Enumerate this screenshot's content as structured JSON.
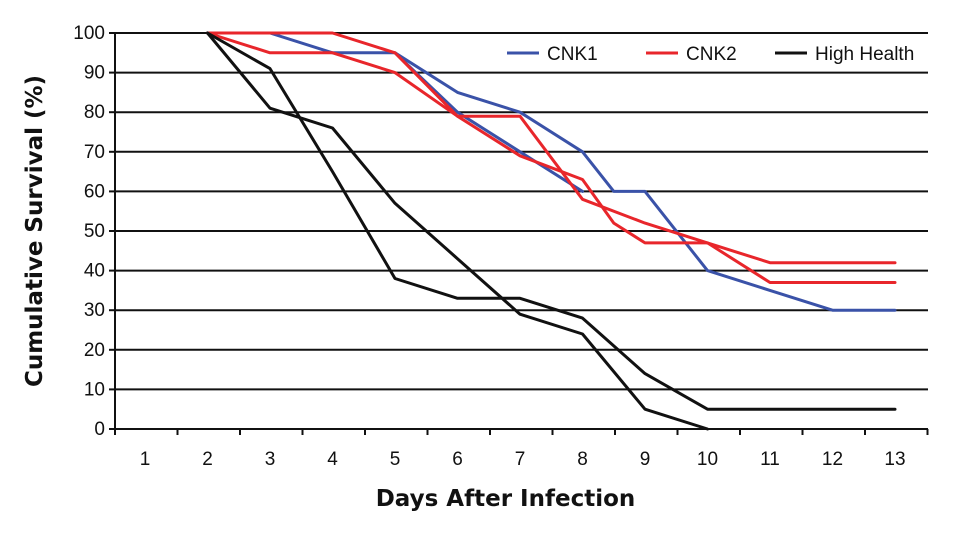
{
  "chart_data": {
    "type": "line",
    "title": "",
    "xlabel": "Days After Infection",
    "ylabel": "Cumulative Survival (%)",
    "x_categories": [
      "1",
      "2",
      "3",
      "4",
      "5",
      "6",
      "7",
      "8",
      "9",
      "10",
      "11",
      "12",
      "13"
    ],
    "ylim": [
      0,
      100
    ],
    "yticks": [
      "0",
      "10",
      "20",
      "30",
      "40",
      "50",
      "60",
      "70",
      "80",
      "90",
      "100"
    ],
    "grid": "horizontal",
    "legend_position": "top-right",
    "series": [
      {
        "name": "CNK1",
        "color": "#3a52a8",
        "points": [
          [
            2,
            100
          ],
          [
            3,
            100
          ],
          [
            4,
            95
          ],
          [
            5,
            95
          ],
          [
            6,
            85
          ],
          [
            7,
            80
          ],
          [
            8,
            70
          ],
          [
            8.5,
            60
          ],
          [
            9,
            60
          ],
          [
            10,
            40
          ],
          [
            11,
            35
          ],
          [
            12,
            30
          ],
          [
            13,
            30
          ]
        ]
      },
      {
        "name": "CNK1",
        "color": "#3a52a8",
        "points": [
          [
            5,
            95
          ],
          [
            6,
            80
          ],
          [
            7,
            70
          ],
          [
            8,
            60
          ]
        ]
      },
      {
        "name": "CNK2",
        "color": "#e8262b",
        "points": [
          [
            2,
            100
          ],
          [
            3,
            95
          ],
          [
            4,
            95
          ],
          [
            5,
            90
          ],
          [
            6,
            79
          ],
          [
            7,
            69
          ],
          [
            8,
            63
          ],
          [
            8.5,
            52
          ],
          [
            9,
            47
          ],
          [
            10,
            47
          ],
          [
            11,
            42
          ],
          [
            12,
            42
          ],
          [
            13,
            42
          ]
        ]
      },
      {
        "name": "CNK2",
        "color": "#e8262b",
        "points": [
          [
            2,
            100
          ],
          [
            4,
            100
          ],
          [
            5,
            95
          ],
          [
            6,
            79
          ],
          [
            7,
            79
          ],
          [
            8,
            58
          ],
          [
            9,
            52
          ],
          [
            10,
            47
          ],
          [
            11,
            37
          ],
          [
            12,
            37
          ],
          [
            13,
            37
          ]
        ]
      },
      {
        "name": "High Health",
        "color": "#111111",
        "points": [
          [
            2,
            100
          ],
          [
            3,
            91
          ],
          [
            4,
            65
          ],
          [
            5,
            38
          ],
          [
            6,
            33
          ],
          [
            7,
            33
          ],
          [
            8,
            28
          ],
          [
            9,
            14
          ],
          [
            10,
            5
          ],
          [
            11,
            5
          ],
          [
            12,
            5
          ],
          [
            13,
            5
          ]
        ]
      },
      {
        "name": "High Health",
        "color": "#111111",
        "points": [
          [
            2,
            100
          ],
          [
            3,
            81
          ],
          [
            4,
            76
          ],
          [
            5,
            57
          ],
          [
            6,
            43
          ],
          [
            7,
            29
          ],
          [
            8,
            24
          ],
          [
            9,
            5
          ],
          [
            10,
            0
          ]
        ]
      }
    ],
    "legend": [
      {
        "name": "CNK1",
        "color": "#3a52a8"
      },
      {
        "name": "CNK2",
        "color": "#e8262b"
      },
      {
        "name": "High Health",
        "color": "#111111"
      }
    ]
  }
}
